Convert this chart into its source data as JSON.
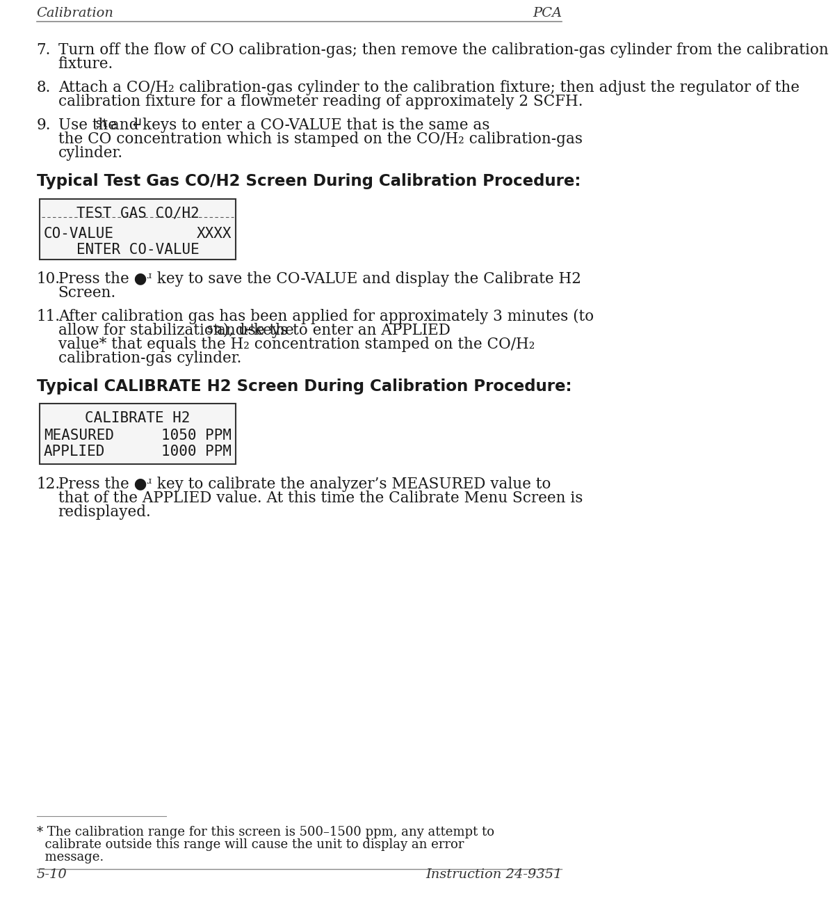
{
  "page_bg": "#ffffff",
  "header_left": "Calibration",
  "header_right": "PCA",
  "footer_left": "5-10",
  "footer_right": "Instruction 24-9351",
  "body_text_color": "#1a1a1a",
  "header_footer_color": "#333333",
  "line_color": "#888888",
  "item7": "Turn off the flow of CO calibration-gas; then remove the calibration-gas cylinder from the calibration fixture.",
  "item8": "Attach a CO/H₂ calibration-gas cylinder to the calibration fixture; then adjust the regulator of the calibration fixture for a flowmeter reading of approximately 2 SCFH.",
  "item10_line1": "Press the ●ʴ key to save the CO-VALUE and display the Calibrate H2",
  "item10_line2": "Screen.",
  "item11_line1": "After calibration gas has been applied for approximately 3 minutes (to",
  "item11_line2a": "allow for stabilization), use the ",
  "item11_line2b": "keys to enter an APPLIED",
  "item11_line3": "value* that equals the H₂ concentration stamped on the CO/H₂",
  "item11_line4": "calibration-gas cylinder.",
  "item12_line1": "Press the ●ʴ key to calibrate the analyzer’s MEASURED value to",
  "item12_line2": "that of the APPLIED value. At this time the Calibrate Menu Screen is",
  "item12_line3": "redisplayed.",
  "heading1": "Typical Test Gas CO/H2 Screen During Calibration Procedure:",
  "heading2": "Typical CALIBRATE H2 Screen During Calibration Procedure:",
  "fn_line1": "* The calibration range for this screen is 500–1500 ppm, any attempt to",
  "fn_line2": "  calibrate outside this range will cause the unit to display an error",
  "fn_line3": "  message.",
  "item9_p1": "Use the ",
  "item9_st": "st",
  "item9_p2": " and ",
  "item9_arrow": "↵",
  "item9_p3": "keys to enter a CO-VALUE that is the same as",
  "item9_line2": "the CO concentration which is stamped on the CO/H₂ calibration-gas",
  "item9_line3": "cylinder.",
  "item11_st": "st",
  "item11_arrow": "↵"
}
